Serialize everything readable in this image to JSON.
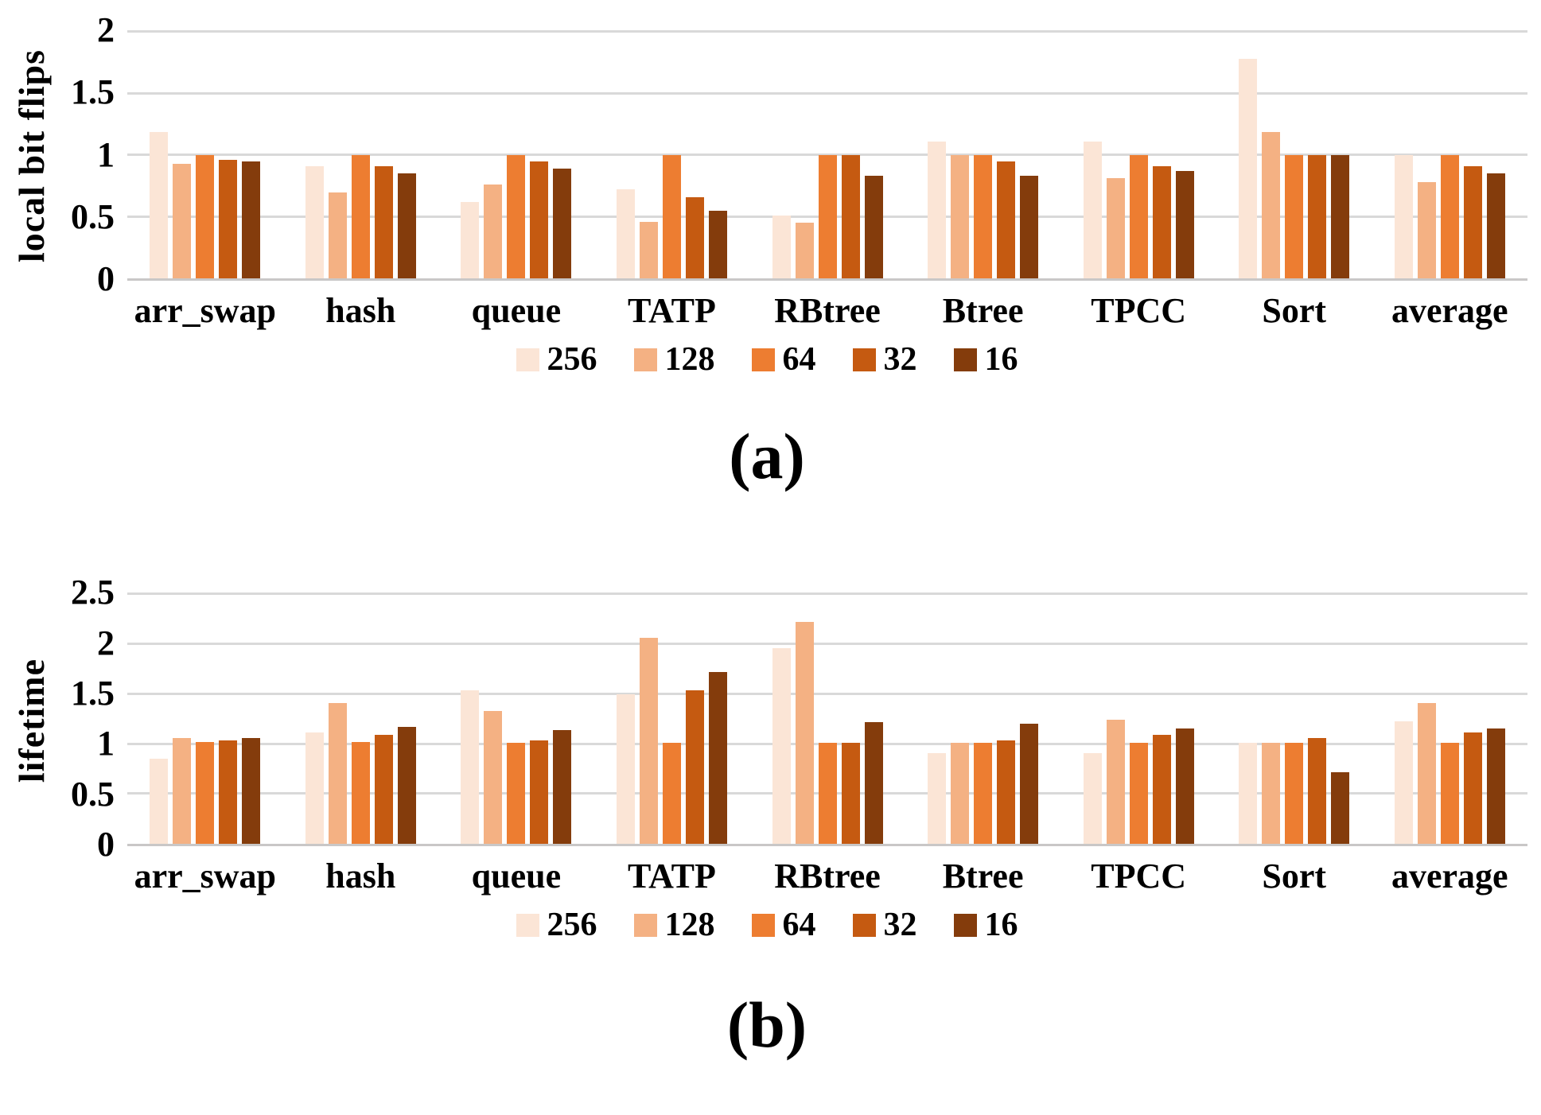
{
  "figure": {
    "panels": [
      {
        "caption": "(a)",
        "ylabel": "local bit flips"
      },
      {
        "caption": "(b)",
        "ylabel": "lifetime"
      }
    ]
  },
  "colors": {
    "series": [
      "#FBE5D6",
      "#F4B183",
      "#ED7D31",
      "#C55A11",
      "#843C0C"
    ],
    "gridline": "#D9D9D9",
    "axis_line": "#C9C7C7",
    "text": "#000000"
  },
  "chart_data": [
    {
      "type": "bar",
      "title": "",
      "xlabel": "",
      "ylabel": "local bit flips",
      "ylim": [
        0,
        2
      ],
      "yticks": [
        0,
        0.5,
        1,
        1.5,
        2
      ],
      "grid": true,
      "legend_position": "bottom",
      "categories": [
        "arr_swap",
        "hash",
        "queue",
        "TATP",
        "RBtree",
        "Btree",
        "TPCC",
        "Sort",
        "average"
      ],
      "series": [
        {
          "name": "256",
          "values": [
            1.19,
            0.91,
            0.62,
            0.72,
            0.51,
            1.11,
            1.11,
            1.78,
            1.0
          ]
        },
        {
          "name": "128",
          "values": [
            0.93,
            0.7,
            0.76,
            0.46,
            0.45,
            1.0,
            0.81,
            1.19,
            0.78
          ]
        },
        {
          "name": "64",
          "values": [
            1.0,
            1.0,
            1.0,
            1.0,
            1.0,
            1.0,
            1.0,
            1.0,
            1.0
          ]
        },
        {
          "name": "32",
          "values": [
            0.96,
            0.91,
            0.95,
            0.66,
            1.0,
            0.95,
            0.91,
            1.0,
            0.91
          ]
        },
        {
          "name": "16",
          "values": [
            0.95,
            0.85,
            0.89,
            0.55,
            0.83,
            0.83,
            0.87,
            1.0,
            0.85
          ]
        }
      ]
    },
    {
      "type": "bar",
      "title": "",
      "xlabel": "",
      "ylabel": "lifetime",
      "ylim": [
        0,
        2.5
      ],
      "yticks": [
        0,
        0.5,
        1,
        1.5,
        2,
        2.5
      ],
      "grid": true,
      "legend_position": "bottom",
      "categories": [
        "arr_swap",
        "hash",
        "queue",
        "TATP",
        "RBtree",
        "Btree",
        "TPCC",
        "Sort",
        "average"
      ],
      "series": [
        {
          "name": "256",
          "values": [
            0.85,
            1.12,
            1.54,
            1.5,
            1.96,
            0.91,
            0.91,
            1.01,
            1.23
          ]
        },
        {
          "name": "128",
          "values": [
            1.06,
            1.41,
            1.33,
            2.06,
            2.22,
            1.01,
            1.24,
            1.01,
            1.41
          ]
        },
        {
          "name": "64",
          "values": [
            1.02,
            1.02,
            1.01,
            1.01,
            1.01,
            1.01,
            1.01,
            1.01,
            1.01
          ]
        },
        {
          "name": "32",
          "values": [
            1.04,
            1.09,
            1.04,
            1.54,
            1.01,
            1.04,
            1.09,
            1.06,
            1.12
          ]
        },
        {
          "name": "16",
          "values": [
            1.06,
            1.17,
            1.14,
            1.72,
            1.22,
            1.2,
            1.16,
            0.72,
            1.16
          ]
        }
      ]
    }
  ]
}
